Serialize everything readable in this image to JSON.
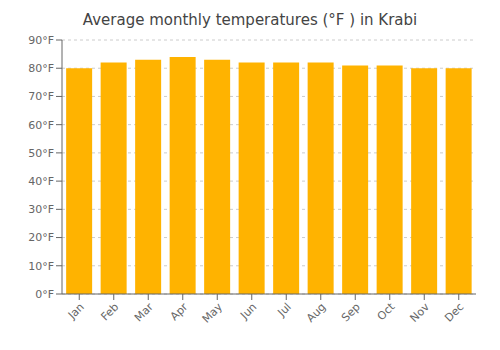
{
  "chart_data": {
    "type": "bar",
    "title": "Average monthly temperatures (°F ) in Krabi",
    "categories": [
      "Jan",
      "Feb",
      "Mar",
      "Apr",
      "May",
      "Jun",
      "Jul",
      "Aug",
      "Sep",
      "Oct",
      "Nov",
      "Dec"
    ],
    "values": [
      80,
      82,
      83,
      84,
      83,
      82,
      82,
      82,
      81,
      81,
      80,
      80
    ],
    "color": "#FFB300",
    "ylim": [
      0,
      90
    ],
    "yticks": [
      {
        "value": 0,
        "label": "0°F"
      },
      {
        "value": 10,
        "label": "10°F"
      },
      {
        "value": 20,
        "label": "20°F"
      },
      {
        "value": 30,
        "label": "30°F"
      },
      {
        "value": 40,
        "label": "40°F"
      },
      {
        "value": 50,
        "label": "50°F"
      },
      {
        "value": 60,
        "label": "60°F"
      },
      {
        "value": 70,
        "label": "70°F"
      },
      {
        "value": 80,
        "label": "80°F"
      },
      {
        "value": 90,
        "label": "90°F"
      }
    ],
    "grid": true
  }
}
